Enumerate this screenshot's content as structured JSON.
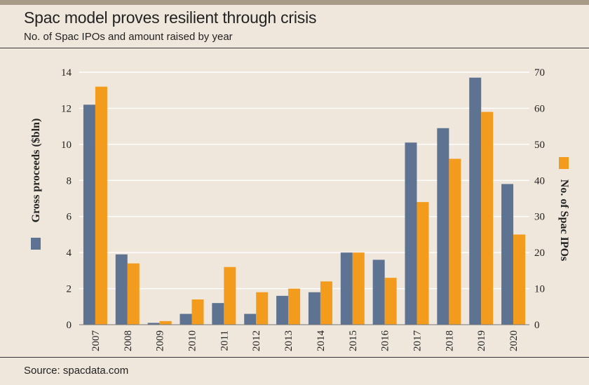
{
  "header": {
    "title": "Spac model proves resilient through crisis",
    "subtitle": "No. of Spac IPOs and amount raised by year"
  },
  "footer": {
    "source": "Source: spacdata.com"
  },
  "chart_data": {
    "type": "bar",
    "title": "Spac model proves resilient through crisis",
    "subtitle": "No. of Spac IPOs and amount raised by year",
    "categories": [
      "2007",
      "2008",
      "2009",
      "2010",
      "2011",
      "2012",
      "2013",
      "2014",
      "2015",
      "2016",
      "2017",
      "2018",
      "2019",
      "2020"
    ],
    "series": [
      {
        "name": "Gross proceeds ($bln)",
        "axis": "left",
        "color": "#5d7391",
        "values": [
          12.2,
          3.9,
          0.1,
          0.6,
          1.2,
          0.6,
          1.6,
          1.8,
          4.0,
          3.6,
          10.1,
          10.9,
          13.7,
          7.8
        ]
      },
      {
        "name": "No. of Spac IPOs",
        "axis": "right",
        "color": "#f39b1c",
        "values": [
          66,
          17,
          1,
          7,
          16,
          9,
          10,
          12,
          20,
          13,
          34,
          46,
          59,
          25
        ]
      }
    ],
    "ylabel": "Gross proceeds ($bln)",
    "ylabel_right": "No. of Spac IPOs",
    "ylim": [
      0,
      14
    ],
    "ylim_right": [
      0,
      70
    ],
    "yticks": [
      0,
      2,
      4,
      6,
      8,
      10,
      12,
      14
    ],
    "yticks_right": [
      0,
      10,
      20,
      30,
      40,
      50,
      60,
      70
    ],
    "grid": true
  }
}
